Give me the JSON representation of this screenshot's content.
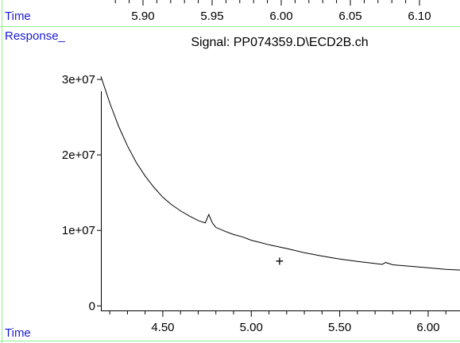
{
  "colors": {
    "label_blue": "#1a1ad6",
    "frame_green": "#90ee90",
    "trace": "#000000"
  },
  "top_strip": {
    "axis_label": "Time",
    "ticks": [
      "5.90",
      "5.95",
      "6.00",
      "6.05",
      "6.10"
    ]
  },
  "chart_data": {
    "type": "line",
    "title": "Signal: PP074359.D\\ECD2B.ch",
    "ylabel": "Response_",
    "xlabel": "Time",
    "xlim": [
      4.15,
      6.18
    ],
    "ylim": [
      -600000,
      34000000
    ],
    "x_ticks": [
      4.5,
      5.0,
      5.5,
      6.0
    ],
    "x_tick_labels": [
      "4.50",
      "5.00",
      "5.50",
      "6.00"
    ],
    "y_ticks": [
      0,
      10000000,
      20000000,
      30000000
    ],
    "y_tick_labels": [
      "0",
      "1e+07",
      "2e+07",
      "3e+07"
    ],
    "grid": false,
    "series": [
      {
        "x": [
          4.15,
          4.2,
          4.25,
          4.3,
          4.35,
          4.4,
          4.45,
          4.5,
          4.55,
          4.6,
          4.65,
          4.7,
          4.74,
          4.76,
          4.78,
          4.8,
          4.85,
          4.9,
          4.95,
          5.0,
          5.05,
          5.1,
          5.2,
          5.3,
          5.4,
          5.5,
          5.6,
          5.7,
          5.74,
          5.76,
          5.8,
          5.9,
          6.0,
          6.1,
          6.18
        ],
        "y": [
          30400000,
          26900000,
          23800000,
          21200000,
          19000000,
          17200000,
          15700000,
          14400000,
          13400000,
          12600000,
          11900000,
          11300000,
          11000000,
          12100000,
          11000000,
          10400000,
          9900000,
          9450000,
          9150000,
          8700000,
          8400000,
          8100000,
          7600000,
          7050000,
          6600000,
          6200000,
          5900000,
          5620000,
          5500000,
          5750000,
          5450000,
          5250000,
          5050000,
          4850000,
          4750000
        ]
      }
    ],
    "annotations": [
      {
        "text": "+",
        "x": 5.16,
        "y": 5900000
      }
    ]
  }
}
